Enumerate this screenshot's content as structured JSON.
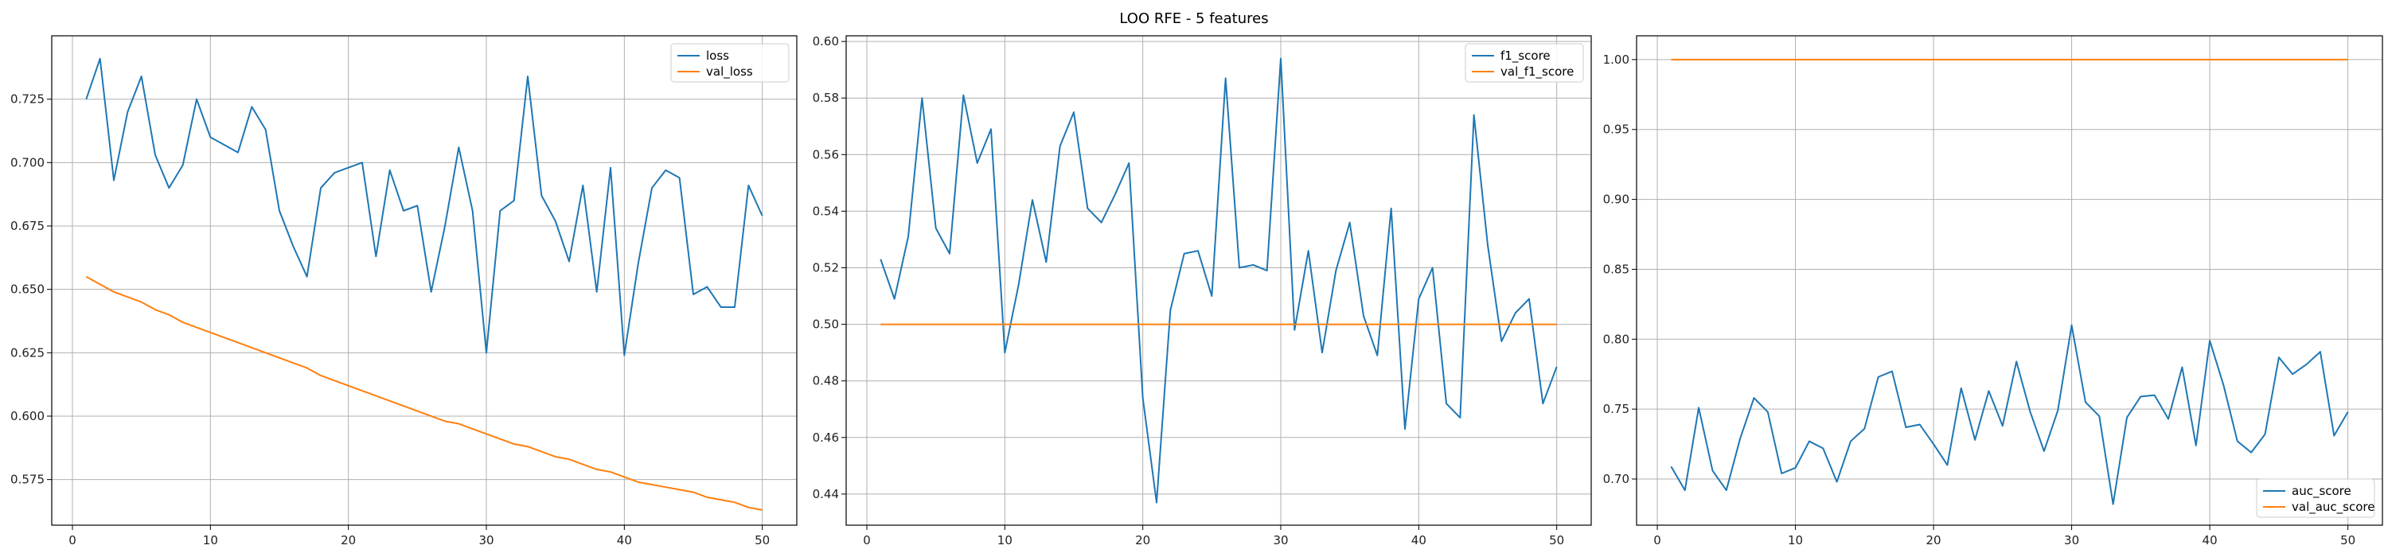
{
  "figure": {
    "title": "LOO RFE - 5 features"
  },
  "colors": {
    "blue": "#1f77b4",
    "orange": "#ff7f0e"
  },
  "chart_data": [
    {
      "type": "line",
      "x": [
        1,
        2,
        3,
        4,
        5,
        6,
        7,
        8,
        9,
        10,
        11,
        12,
        13,
        14,
        15,
        16,
        17,
        18,
        19,
        20,
        21,
        22,
        23,
        24,
        25,
        26,
        27,
        28,
        29,
        30,
        31,
        32,
        33,
        34,
        35,
        36,
        37,
        38,
        39,
        40,
        41,
        42,
        43,
        44,
        45,
        46,
        47,
        48,
        49,
        50
      ],
      "series": [
        {
          "name": "loss",
          "color": "#1f77b4",
          "values": [
            0.725,
            0.741,
            0.693,
            0.72,
            0.734,
            0.703,
            0.69,
            0.699,
            0.725,
            0.71,
            0.707,
            0.704,
            0.722,
            0.713,
            0.681,
            0.667,
            0.655,
            0.69,
            0.696,
            0.698,
            0.7,
            0.663,
            0.697,
            0.681,
            0.683,
            0.649,
            0.675,
            0.706,
            0.681,
            0.625,
            0.681,
            0.685,
            0.734,
            0.687,
            0.677,
            0.661,
            0.691,
            0.649,
            0.698,
            0.624,
            0.66,
            0.69,
            0.697,
            0.694,
            0.648,
            0.651,
            0.643,
            0.643,
            0.691,
            0.679
          ]
        },
        {
          "name": "val_loss",
          "color": "#ff7f0e",
          "values": [
            0.655,
            0.652,
            0.649,
            0.647,
            0.645,
            0.642,
            0.64,
            0.637,
            0.635,
            0.633,
            0.631,
            0.629,
            0.627,
            0.625,
            0.623,
            0.621,
            0.619,
            0.616,
            0.614,
            0.612,
            0.61,
            0.608,
            0.606,
            0.604,
            0.602,
            0.6,
            0.598,
            0.597,
            0.595,
            0.593,
            0.591,
            0.589,
            0.588,
            0.586,
            0.584,
            0.583,
            0.581,
            0.579,
            0.578,
            0.576,
            0.574,
            0.573,
            0.572,
            0.571,
            0.57,
            0.568,
            0.567,
            0.566,
            0.564,
            0.563
          ]
        }
      ],
      "yticks": [
        0.575,
        0.6,
        0.625,
        0.65,
        0.675,
        0.7,
        0.725
      ],
      "xticks": [
        0,
        10,
        20,
        30,
        40,
        50
      ],
      "xlim": [
        -1.5,
        52.5
      ],
      "ylim": [
        0.557,
        0.75
      ],
      "grid": true,
      "legend_position": "upper right"
    },
    {
      "type": "line",
      "x": [
        1,
        2,
        3,
        4,
        5,
        6,
        7,
        8,
        9,
        10,
        11,
        12,
        13,
        14,
        15,
        16,
        17,
        18,
        19,
        20,
        21,
        22,
        23,
        24,
        25,
        26,
        27,
        28,
        29,
        30,
        31,
        32,
        33,
        34,
        35,
        36,
        37,
        38,
        39,
        40,
        41,
        42,
        43,
        44,
        45,
        46,
        47,
        48,
        49,
        50
      ],
      "series": [
        {
          "name": "f1_score",
          "color": "#1f77b4",
          "values": [
            0.523,
            0.509,
            0.531,
            0.58,
            0.534,
            0.525,
            0.581,
            0.557,
            0.569,
            0.49,
            0.514,
            0.544,
            0.522,
            0.563,
            0.575,
            0.541,
            0.536,
            0.546,
            0.557,
            0.474,
            0.437,
            0.505,
            0.525,
            0.526,
            0.51,
            0.587,
            0.52,
            0.521,
            0.519,
            0.594,
            0.498,
            0.526,
            0.49,
            0.519,
            0.536,
            0.503,
            0.489,
            0.541,
            0.463,
            0.509,
            0.52,
            0.472,
            0.467,
            0.574,
            0.528,
            0.494,
            0.504,
            0.509,
            0.472,
            0.485
          ]
        },
        {
          "name": "val_f1_score",
          "color": "#ff7f0e",
          "values": [
            0.5,
            0.5,
            0.5,
            0.5,
            0.5,
            0.5,
            0.5,
            0.5,
            0.5,
            0.5,
            0.5,
            0.5,
            0.5,
            0.5,
            0.5,
            0.5,
            0.5,
            0.5,
            0.5,
            0.5,
            0.5,
            0.5,
            0.5,
            0.5,
            0.5,
            0.5,
            0.5,
            0.5,
            0.5,
            0.5,
            0.5,
            0.5,
            0.5,
            0.5,
            0.5,
            0.5,
            0.5,
            0.5,
            0.5,
            0.5,
            0.5,
            0.5,
            0.5,
            0.5,
            0.5,
            0.5,
            0.5,
            0.5,
            0.5,
            0.5
          ]
        }
      ],
      "yticks": [
        0.44,
        0.46,
        0.48,
        0.5,
        0.52,
        0.54,
        0.56,
        0.58,
        0.6
      ],
      "xticks": [
        0,
        10,
        20,
        30,
        40,
        50
      ],
      "xlim": [
        -1.5,
        52.5
      ],
      "ylim": [
        0.429,
        0.602
      ],
      "grid": true,
      "legend_position": "upper right"
    },
    {
      "type": "line",
      "x": [
        1,
        2,
        3,
        4,
        5,
        6,
        7,
        8,
        9,
        10,
        11,
        12,
        13,
        14,
        15,
        16,
        17,
        18,
        19,
        20,
        21,
        22,
        23,
        24,
        25,
        26,
        27,
        28,
        29,
        30,
        31,
        32,
        33,
        34,
        35,
        36,
        37,
        38,
        39,
        40,
        41,
        42,
        43,
        44,
        45,
        46,
        47,
        48,
        49,
        50
      ],
      "series": [
        {
          "name": "auc_score",
          "color": "#1f77b4",
          "values": [
            0.709,
            0.692,
            0.751,
            0.706,
            0.692,
            0.729,
            0.758,
            0.748,
            0.704,
            0.708,
            0.727,
            0.722,
            0.698,
            0.727,
            0.736,
            0.773,
            0.777,
            0.737,
            0.739,
            0.725,
            0.71,
            0.765,
            0.728,
            0.763,
            0.738,
            0.784,
            0.748,
            0.72,
            0.749,
            0.81,
            0.755,
            0.745,
            0.682,
            0.744,
            0.759,
            0.76,
            0.743,
            0.78,
            0.724,
            0.799,
            0.767,
            0.727,
            0.719,
            0.732,
            0.787,
            0.775,
            0.782,
            0.791,
            0.731,
            0.748
          ]
        },
        {
          "name": "val_auc_score",
          "color": "#ff7f0e",
          "values": [
            1,
            1,
            1,
            1,
            1,
            1,
            1,
            1,
            1,
            1,
            1,
            1,
            1,
            1,
            1,
            1,
            1,
            1,
            1,
            1,
            1,
            1,
            1,
            1,
            1,
            1,
            1,
            1,
            1,
            1,
            1,
            1,
            1,
            1,
            1,
            1,
            1,
            1,
            1,
            1,
            1,
            1,
            1,
            1,
            1,
            1,
            1,
            1,
            1,
            1
          ]
        }
      ],
      "yticks": [
        0.7,
        0.75,
        0.8,
        0.85,
        0.9,
        0.95,
        1.0
      ],
      "xticks": [
        0,
        10,
        20,
        30,
        40,
        50
      ],
      "xlim": [
        -1.5,
        52.5
      ],
      "ylim": [
        0.667,
        1.017
      ],
      "grid": true,
      "legend_position": "lower right"
    }
  ]
}
